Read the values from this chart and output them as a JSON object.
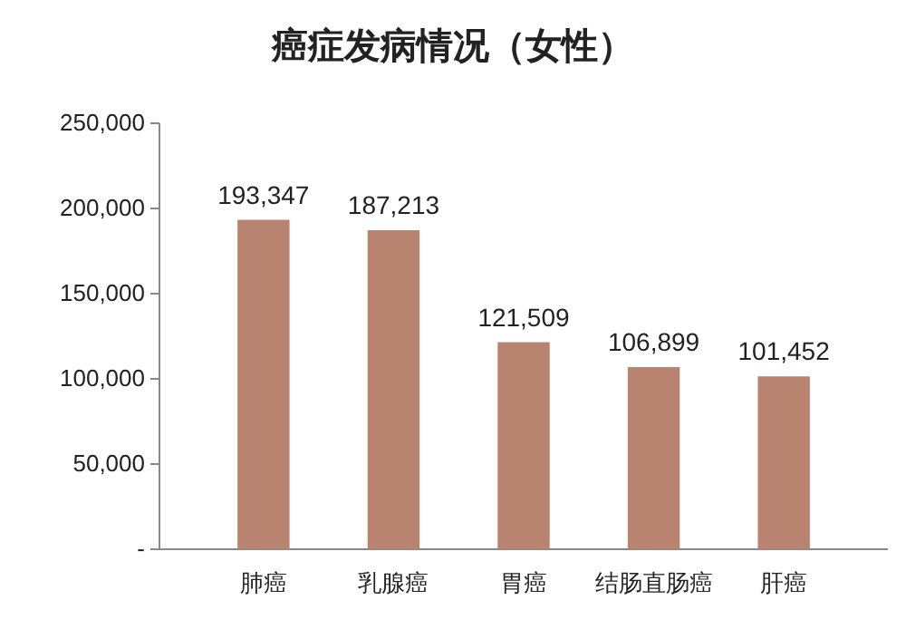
{
  "chart_data": {
    "type": "bar",
    "title": "癌症发病情况（女性）",
    "categories": [
      "肺癌",
      "乳腺癌",
      "胃癌",
      "结肠直肠癌",
      "肝癌"
    ],
    "values": [
      193347,
      187213,
      121509,
      106899,
      101452
    ],
    "value_labels": [
      "193,347",
      "187,213",
      "121,509",
      "106,899",
      "101,452"
    ],
    "color": "#b8846f",
    "ylim": [
      0,
      250000
    ],
    "yticks": [
      {
        "value": 0,
        "label": "-"
      },
      {
        "value": 50000,
        "label": "50,000"
      },
      {
        "value": 100000,
        "label": "100,000"
      },
      {
        "value": 150000,
        "label": "150,000"
      },
      {
        "value": 200000,
        "label": "200,000"
      },
      {
        "value": 250000,
        "label": "250,000"
      }
    ],
    "grid": false
  }
}
